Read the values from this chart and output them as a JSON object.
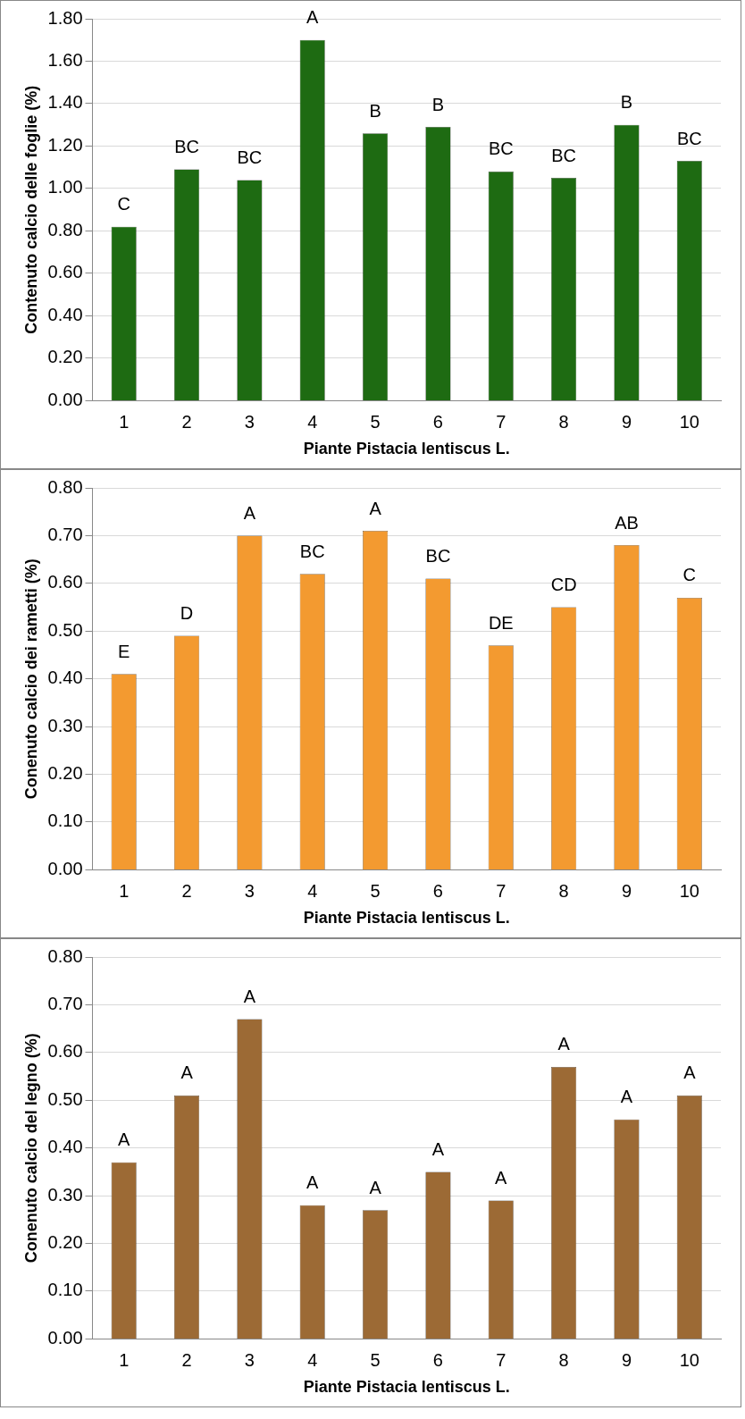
{
  "chart_data": [
    {
      "type": "bar",
      "categories": [
        "1",
        "2",
        "3",
        "4",
        "5",
        "6",
        "7",
        "8",
        "9",
        "10"
      ],
      "values": [
        0.82,
        1.09,
        1.04,
        1.7,
        1.26,
        1.29,
        1.08,
        1.05,
        1.3,
        1.13
      ],
      "color": "#1e6b12",
      "ylim": [
        0,
        1.8
      ],
      "yticks": [
        {
          "value": 0,
          "label": "0.00"
        },
        {
          "value": 0.2,
          "label": "0.20"
        },
        {
          "value": 0.4,
          "label": "0.40"
        },
        {
          "value": 0.6,
          "label": "0.60"
        },
        {
          "value": 0.8,
          "label": "0.80"
        },
        {
          "value": 1.0,
          "label": "1.00"
        },
        {
          "value": 1.2,
          "label": "1.20"
        },
        {
          "value": 1.4,
          "label": "1.40"
        },
        {
          "value": 1.6,
          "label": "1.60"
        },
        {
          "value": 1.8,
          "label": "1.80"
        }
      ],
      "grid": "y",
      "legend": false,
      "xlabel": "Piante Pistacia lentiscus L.",
      "ylabel": "Contenuto calcio delle foglie (%)",
      "annotations": [
        {
          "text": "C",
          "x": "1",
          "y": 0.82
        },
        {
          "text": "BC",
          "x": "2",
          "y": 1.09
        },
        {
          "text": "BC",
          "x": "3",
          "y": 1.04
        },
        {
          "text": "A",
          "x": "4",
          "y": 1.7
        },
        {
          "text": "B",
          "x": "5",
          "y": 1.26
        },
        {
          "text": "B",
          "x": "6",
          "y": 1.29
        },
        {
          "text": "BC",
          "x": "7",
          "y": 1.08
        },
        {
          "text": "BC",
          "x": "8",
          "y": 1.05
        },
        {
          "text": "B",
          "x": "9",
          "y": 1.3
        },
        {
          "text": "BC",
          "x": "10",
          "y": 1.13
        }
      ]
    },
    {
      "type": "bar",
      "categories": [
        "1",
        "2",
        "3",
        "4",
        "5",
        "6",
        "7",
        "8",
        "9",
        "10"
      ],
      "values": [
        0.41,
        0.49,
        0.7,
        0.62,
        0.71,
        0.61,
        0.47,
        0.55,
        0.68,
        0.57
      ],
      "color": "#f39a30",
      "ylim": [
        0,
        0.8
      ],
      "yticks": [
        {
          "value": 0,
          "label": "0.00"
        },
        {
          "value": 0.1,
          "label": "0.10"
        },
        {
          "value": 0.2,
          "label": "0.20"
        },
        {
          "value": 0.3,
          "label": "0.30"
        },
        {
          "value": 0.4,
          "label": "0.40"
        },
        {
          "value": 0.5,
          "label": "0.50"
        },
        {
          "value": 0.6,
          "label": "0.60"
        },
        {
          "value": 0.7,
          "label": "0.70"
        },
        {
          "value": 0.8,
          "label": "0.80"
        }
      ],
      "grid": "y",
      "legend": false,
      "xlabel": "Piante Pistacia lentiscus L.",
      "ylabel": "Conenuto calcio dei rametti (%)",
      "annotations": [
        {
          "text": "E",
          "x": "1",
          "y": 0.41
        },
        {
          "text": "D",
          "x": "2",
          "y": 0.49
        },
        {
          "text": "A",
          "x": "3",
          "y": 0.7
        },
        {
          "text": "BC",
          "x": "4",
          "y": 0.62
        },
        {
          "text": "A",
          "x": "5",
          "y": 0.71
        },
        {
          "text": "BC",
          "x": "6",
          "y": 0.61
        },
        {
          "text": "DE",
          "x": "7",
          "y": 0.47
        },
        {
          "text": "CD",
          "x": "8",
          "y": 0.55
        },
        {
          "text": "AB",
          "x": "9",
          "y": 0.68
        },
        {
          "text": "C",
          "x": "10",
          "y": 0.57
        }
      ]
    },
    {
      "type": "bar",
      "categories": [
        "1",
        "2",
        "3",
        "4",
        "5",
        "6",
        "7",
        "8",
        "9",
        "10"
      ],
      "values": [
        0.37,
        0.51,
        0.67,
        0.28,
        0.27,
        0.35,
        0.29,
        0.57,
        0.46,
        0.51
      ],
      "color": "#9c6a35",
      "ylim": [
        0,
        0.8
      ],
      "yticks": [
        {
          "value": 0,
          "label": "0.00"
        },
        {
          "value": 0.1,
          "label": "0.10"
        },
        {
          "value": 0.2,
          "label": "0.20"
        },
        {
          "value": 0.3,
          "label": "0.30"
        },
        {
          "value": 0.4,
          "label": "0.40"
        },
        {
          "value": 0.5,
          "label": "0.50"
        },
        {
          "value": 0.6,
          "label": "0.60"
        },
        {
          "value": 0.7,
          "label": "0.70"
        },
        {
          "value": 0.8,
          "label": "0.80"
        }
      ],
      "grid": "y",
      "legend": false,
      "xlabel": "Piante Pistacia lentiscus L.",
      "ylabel": "Conenuto calcio del legno (%)",
      "annotations": [
        {
          "text": "A",
          "x": "1",
          "y": 0.37
        },
        {
          "text": "A",
          "x": "2",
          "y": 0.51
        },
        {
          "text": "A",
          "x": "3",
          "y": 0.67
        },
        {
          "text": "A",
          "x": "4",
          "y": 0.28
        },
        {
          "text": "A",
          "x": "5",
          "y": 0.27
        },
        {
          "text": "A",
          "x": "6",
          "y": 0.35
        },
        {
          "text": "A",
          "x": "7",
          "y": 0.29
        },
        {
          "text": "A",
          "x": "8",
          "y": 0.57
        },
        {
          "text": "A",
          "x": "9",
          "y": 0.46
        },
        {
          "text": "A",
          "x": "10",
          "y": 0.51
        }
      ]
    }
  ]
}
